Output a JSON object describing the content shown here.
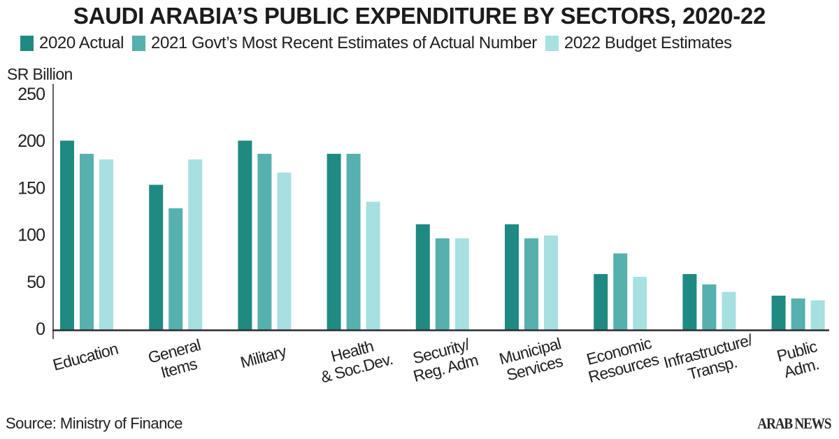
{
  "chart_data": {
    "type": "bar",
    "title": "SAUDI ARABIA’S PUBLIC EXPENDITURE BY SECTORS, 2020-22",
    "ylabel": "SR Billion",
    "xlabel": "",
    "ylim": [
      0,
      250
    ],
    "yticks": [
      "0",
      "50",
      "100",
      "150",
      "200",
      "250"
    ],
    "grid": false,
    "legend_position": "top",
    "categories": [
      "Education",
      "General\nItems",
      "Military",
      "Health\n& Soc.Dev.",
      "Security/\nReg. Adm",
      "Municipal\nServices",
      "Economic\nResources",
      "Infrastructure/\nTransp.",
      "Public\nAdm."
    ],
    "series": [
      {
        "name": "2020 Actual",
        "color": "#1f8a82",
        "values": [
          200,
          153,
          200,
          186,
          111,
          111,
          58,
          58,
          35
        ]
      },
      {
        "name": "2021 Govt’s Most Recent Estimates of Actual Number",
        "color": "#56b0ae",
        "values": [
          186,
          128,
          186,
          186,
          96,
          96,
          80,
          47,
          32
        ]
      },
      {
        "name": "2022 Budget Estimates",
        "color": "#a6e0e1",
        "values": [
          180,
          180,
          166,
          135,
          96,
          99,
          55,
          39,
          30
        ]
      }
    ]
  },
  "source": "Source: Ministry of Finance",
  "brand": "ARAB NEWS"
}
